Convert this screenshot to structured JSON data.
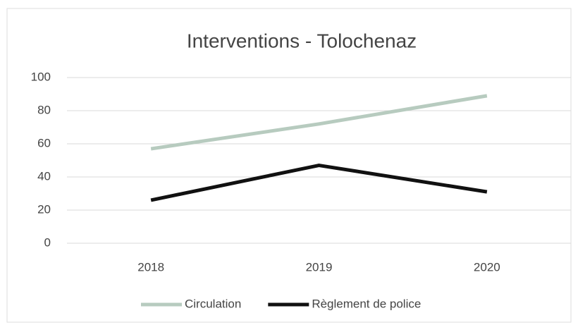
{
  "chart_data": {
    "type": "line",
    "title": "Interventions - Tolochenaz",
    "categories": [
      "2018",
      "2019",
      "2020"
    ],
    "series": [
      {
        "name": "Circulation",
        "color": "#b7cbbf",
        "values": [
          57,
          72,
          89
        ]
      },
      {
        "name": "Règlement de police",
        "color": "#111111",
        "values": [
          26,
          47,
          31
        ]
      }
    ],
    "ylim": [
      0,
      100
    ],
    "yticks": [
      0,
      20,
      40,
      60,
      80,
      100
    ],
    "grid": true,
    "legend": "bottom"
  }
}
